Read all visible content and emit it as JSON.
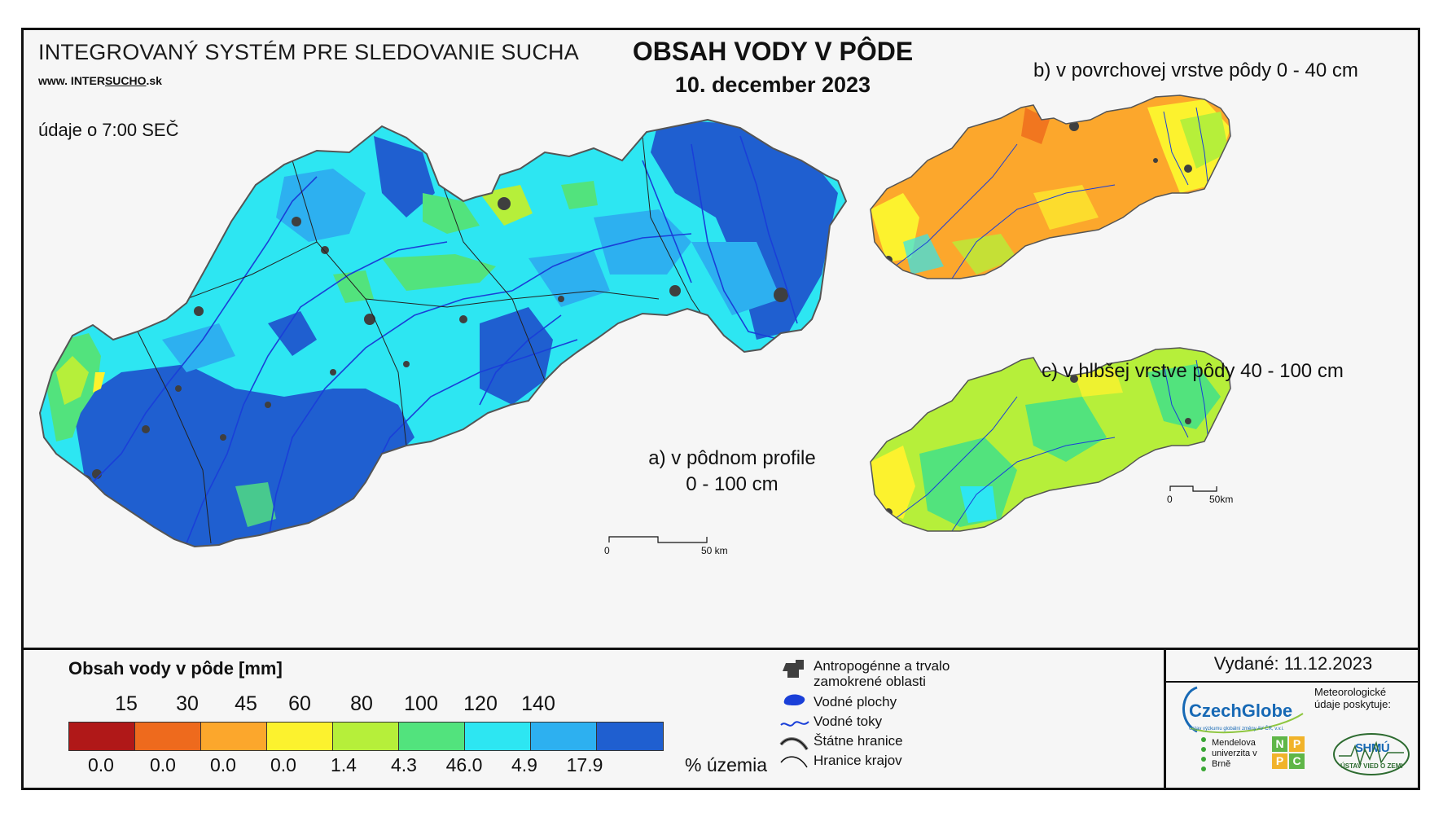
{
  "header": {
    "system_title": "INTEGROVANÝ SYSTÉM PRE SLEDOVANIE SUCHA",
    "website_prefix": "www. INTER",
    "website_emph": "SUCHO",
    "website_suffix": ".sk",
    "data_time": "údaje o 7:00 SEČ",
    "main_title": "OBSAH VODY V PÔDE",
    "date": "10. december 2023"
  },
  "maps": {
    "a_label_line1": "a) v pôdnom profile",
    "a_label_line2": "0 - 100 cm",
    "b_label": "b) v povrchovej vrstve pôdy 0 - 40 cm",
    "c_label": "c) v hlbšej vrstve pôdy 40 - 100 cm",
    "scale_main": {
      "start": "0",
      "end": "50 km"
    },
    "scale_small": {
      "start": "0",
      "end": "50km"
    }
  },
  "legend": {
    "title": "Obsah vody v pôde  [mm]",
    "thresholds": [
      "15",
      "30",
      "45",
      "60",
      "80",
      "100",
      "120",
      "140"
    ],
    "classes": [
      {
        "color": "#b01818",
        "pct": "0.0"
      },
      {
        "color": "#ee6a1d",
        "pct": "0.0"
      },
      {
        "color": "#fca72c",
        "pct": "0.0"
      },
      {
        "color": "#fcf22e",
        "pct": "0.0"
      },
      {
        "color": "#b6ef3a",
        "pct": "1.4"
      },
      {
        "color": "#52e37d",
        "pct": "4.3"
      },
      {
        "color": "#2de6f2",
        "pct": "46.0"
      },
      {
        "color": "#2db0f0",
        "pct": "4.9"
      },
      {
        "color": "#1f5fd0",
        "pct": "17.9"
      }
    ],
    "unit_label": "% územia"
  },
  "symbols": {
    "urban": "Antropogénne a trvalo zamokrené oblasti",
    "water_bodies": "Vodné plochy",
    "rivers": "Vodné toky",
    "state_border": "Štátne hranice",
    "region_border": "Hranice krajov"
  },
  "credits": {
    "issued": "Vydané: 11.12.2023",
    "czechglobe": "CzechGlobe",
    "czechglobe_sub": "Ústav výzkumu globální změny AV ČR, v.v.i.",
    "meteo": "Meteorologické údaje poskytuje:",
    "shmu": "SHMÚ",
    "mendel": "Mendelova univerzita v Brně",
    "nppc": [
      "N",
      "P",
      "P",
      "C"
    ],
    "uvz": "ÚSTAV VIED O ZEMI"
  },
  "colors": {
    "main_map_base": "#2de6f2",
    "main_map_wet": "#1f5fd0",
    "b_map_base": "#fca72c",
    "c_map_base": "#b6ef3a",
    "river": "#1a3fd8",
    "frame": "#111111"
  }
}
